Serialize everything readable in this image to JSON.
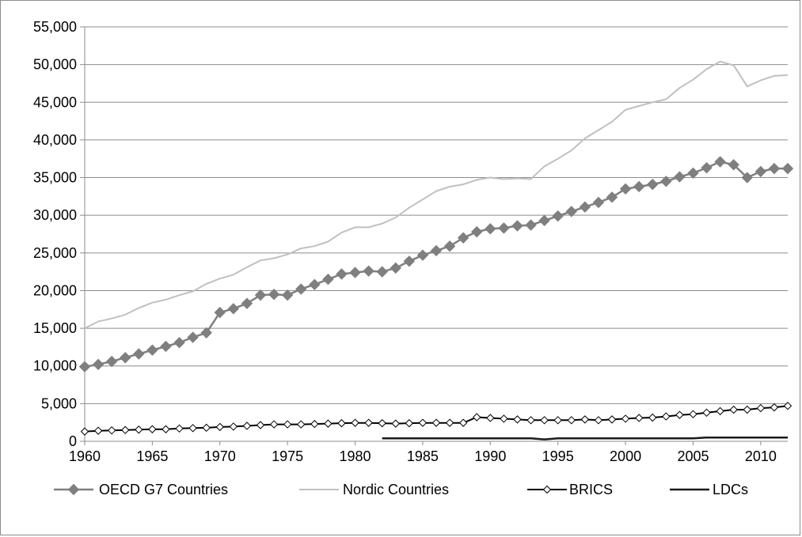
{
  "chart_data": {
    "type": "line",
    "title": "",
    "xlabel": "",
    "ylabel": "",
    "xlim": [
      1960,
      2012
    ],
    "ylim": [
      0,
      55000
    ],
    "y_ticks": [
      0,
      5000,
      10000,
      15000,
      20000,
      25000,
      30000,
      35000,
      40000,
      45000,
      50000,
      55000
    ],
    "y_tick_labels": [
      "0",
      "5,000",
      "10,000",
      "15,000",
      "20,000",
      "25,000",
      "30,000",
      "35,000",
      "40,000",
      "45,000",
      "50,000",
      "55,000"
    ],
    "x_ticks": [
      1960,
      1965,
      1970,
      1975,
      1980,
      1985,
      1990,
      1995,
      2000,
      2005,
      2010
    ],
    "x_tick_labels": [
      "1960",
      "1965",
      "1970",
      "1975",
      "1980",
      "1985",
      "1990",
      "1995",
      "2000",
      "2005",
      "2010"
    ],
    "grid": "horizontal",
    "legend_position": "bottom",
    "series": [
      {
        "name": "OECD G7 Countries",
        "color": "#7f7f7f",
        "marker": "diamond-filled",
        "x": [
          1960,
          1961,
          1962,
          1963,
          1964,
          1965,
          1966,
          1967,
          1968,
          1969,
          1970,
          1971,
          1972,
          1973,
          1974,
          1975,
          1976,
          1977,
          1978,
          1979,
          1980,
          1981,
          1982,
          1983,
          1984,
          1985,
          1986,
          1987,
          1988,
          1989,
          1990,
          1991,
          1992,
          1993,
          1994,
          1995,
          1996,
          1997,
          1998,
          1999,
          2000,
          2001,
          2002,
          2003,
          2004,
          2005,
          2006,
          2007,
          2008,
          2009,
          2010,
          2011,
          2012
        ],
        "values": [
          9900,
          10200,
          10600,
          11100,
          11600,
          12100,
          12600,
          13100,
          13800,
          14400,
          17100,
          17600,
          18300,
          19400,
          19500,
          19400,
          20200,
          20800,
          21500,
          22200,
          22400,
          22600,
          22500,
          23000,
          23900,
          24700,
          25300,
          25900,
          27000,
          27800,
          28200,
          28300,
          28600,
          28700,
          29300,
          29900,
          30500,
          31100,
          31700,
          32400,
          33500,
          33800,
          34100,
          34500,
          35100,
          35600,
          36300,
          37100,
          36700,
          35000,
          35800,
          36200,
          36200
        ]
      },
      {
        "name": "Nordic Countries",
        "color": "#c0c0c0",
        "marker": "none",
        "x": [
          1960,
          1961,
          1962,
          1963,
          1964,
          1965,
          1966,
          1967,
          1968,
          1969,
          1970,
          1971,
          1972,
          1973,
          1974,
          1975,
          1976,
          1977,
          1978,
          1979,
          1980,
          1981,
          1982,
          1983,
          1984,
          1985,
          1986,
          1987,
          1988,
          1989,
          1990,
          1991,
          1992,
          1993,
          1994,
          1995,
          1996,
          1997,
          1998,
          1999,
          2000,
          2001,
          2002,
          2003,
          2004,
          2005,
          2006,
          2007,
          2008,
          2009,
          2010,
          2011,
          2012
        ],
        "values": [
          15000,
          15900,
          16300,
          16800,
          17700,
          18400,
          18800,
          19400,
          19900,
          20900,
          21600,
          22100,
          23100,
          24000,
          24300,
          24800,
          25600,
          25900,
          26500,
          27700,
          28400,
          28400,
          28900,
          29700,
          31000,
          32100,
          33200,
          33800,
          34100,
          34700,
          35000,
          34800,
          34900,
          34800,
          36500,
          37500,
          38600,
          40200,
          41300,
          42400,
          44000,
          44500,
          45000,
          45400,
          46900,
          48000,
          49400,
          50400,
          49900,
          47100,
          47900,
          48500,
          48600
        ]
      },
      {
        "name": "BRICS",
        "color": "#000000",
        "marker": "diamond-open",
        "x": [
          1960,
          1961,
          1962,
          1963,
          1964,
          1965,
          1966,
          1967,
          1968,
          1969,
          1970,
          1971,
          1972,
          1973,
          1974,
          1975,
          1976,
          1977,
          1978,
          1979,
          1980,
          1981,
          1982,
          1983,
          1984,
          1985,
          1986,
          1987,
          1988,
          1989,
          1990,
          1991,
          1992,
          1993,
          1994,
          1995,
          1996,
          1997,
          1998,
          1999,
          2000,
          2001,
          2002,
          2003,
          2004,
          2005,
          2006,
          2007,
          2008,
          2009,
          2010,
          2011,
          2012
        ],
        "values": [
          1300,
          1400,
          1450,
          1500,
          1550,
          1600,
          1600,
          1700,
          1750,
          1800,
          1900,
          1950,
          2050,
          2150,
          2250,
          2250,
          2250,
          2300,
          2350,
          2400,
          2450,
          2450,
          2400,
          2350,
          2400,
          2450,
          2450,
          2450,
          2450,
          3200,
          3100,
          3000,
          2900,
          2800,
          2800,
          2800,
          2800,
          2900,
          2800,
          2900,
          3000,
          3100,
          3150,
          3300,
          3500,
          3600,
          3800,
          4000,
          4200,
          4200,
          4400,
          4500,
          4700
        ]
      },
      {
        "name": "LDCs",
        "color": "#1a1a1a",
        "marker": "none",
        "x": [
          1982,
          1983,
          1984,
          1985,
          1986,
          1987,
          1988,
          1989,
          1990,
          1991,
          1992,
          1993,
          1994,
          1995,
          1996,
          1997,
          1998,
          1999,
          2000,
          2001,
          2002,
          2003,
          2004,
          2005,
          2006,
          2007,
          2008,
          2009,
          2010,
          2011,
          2012
        ],
        "values": [
          400,
          400,
          400,
          400,
          400,
          400,
          400,
          400,
          400,
          400,
          400,
          400,
          250,
          400,
          400,
          400,
          400,
          400,
          400,
          400,
          400,
          400,
          400,
          400,
          500,
          500,
          500,
          500,
          500,
          500,
          500
        ]
      }
    ]
  }
}
